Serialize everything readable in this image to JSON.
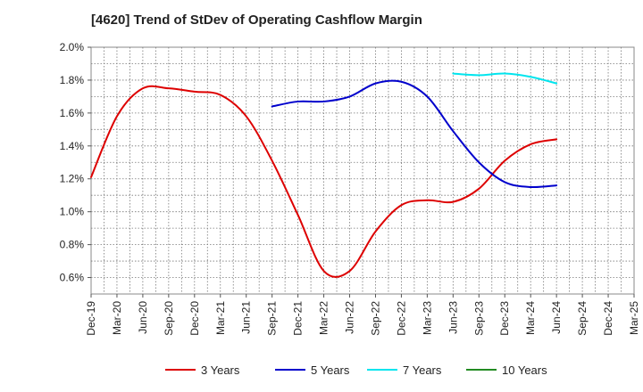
{
  "title": "[4620]  Trend of StDev of Operating Cashflow Margin",
  "chart_data": {
    "type": "line",
    "title": "[4620]  Trend of StDev of Operating Cashflow Margin",
    "xlabel": "",
    "ylabel": "",
    "x": [
      "Dec-19",
      "Mar-20",
      "Jun-20",
      "Sep-20",
      "Dec-20",
      "Mar-21",
      "Jun-21",
      "Sep-21",
      "Dec-21",
      "Mar-22",
      "Jun-22",
      "Sep-22",
      "Dec-22",
      "Mar-23",
      "Jun-23",
      "Sep-23",
      "Dec-23",
      "Mar-24",
      "Jun-24",
      "Sep-24",
      "Dec-24",
      "Mar-25"
    ],
    "ylim": [
      0.5,
      2.0
    ],
    "y_ticks": [
      0.6,
      0.8,
      1.0,
      1.2,
      1.4,
      1.6,
      1.8,
      2.0
    ],
    "y_tick_labels": [
      "0.6%",
      "0.8%",
      "1.0%",
      "1.2%",
      "1.4%",
      "1.6%",
      "1.8%",
      "2.0%"
    ],
    "grid": true,
    "legend_position": "bottom",
    "series": [
      {
        "name": "3 Years",
        "color": "#dd0000",
        "values": [
          1.21,
          1.58,
          1.75,
          1.75,
          1.73,
          1.71,
          1.58,
          1.31,
          0.98,
          0.64,
          0.64,
          0.88,
          1.04,
          1.07,
          1.06,
          1.14,
          1.31,
          1.41,
          1.44,
          null,
          null,
          null
        ]
      },
      {
        "name": "5 Years",
        "color": "#0000cc",
        "values": [
          null,
          null,
          null,
          null,
          null,
          null,
          null,
          1.64,
          1.67,
          1.67,
          1.7,
          1.78,
          1.79,
          1.7,
          1.49,
          1.3,
          1.18,
          1.15,
          1.16,
          null,
          null,
          null
        ]
      },
      {
        "name": "7 Years",
        "color": "#00e5ee",
        "values": [
          null,
          null,
          null,
          null,
          null,
          null,
          null,
          null,
          null,
          null,
          null,
          null,
          null,
          null,
          1.84,
          1.83,
          1.84,
          1.82,
          1.78,
          null,
          null,
          null
        ]
      },
      {
        "name": "10 Years",
        "color": "#228b22",
        "values": [
          null,
          null,
          null,
          null,
          null,
          null,
          null,
          null,
          null,
          null,
          null,
          null,
          null,
          null,
          null,
          null,
          null,
          null,
          null,
          null,
          null,
          null
        ]
      }
    ]
  }
}
